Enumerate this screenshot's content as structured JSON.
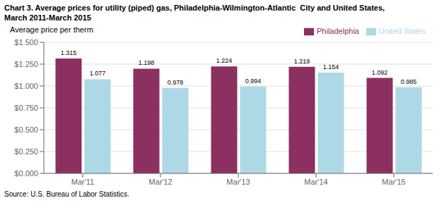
{
  "chart_data": {
    "type": "bar",
    "title": "Chart 3. Average prices for utility (piped) gas, Philadelphia-Wilmington-Atlantic  City and United States,",
    "subtitle": "March 2011-March 2015",
    "y_label": "Average price per therm",
    "source": "Source: U.S. Bureau of Labor Statistics.",
    "categories": [
      "Mar'11",
      "Mar'12",
      "Mar'13",
      "Mar'14",
      "Mar'15"
    ],
    "series": [
      {
        "name": "Philadelphia",
        "color": "#8B3060",
        "values": [
          1.315,
          1.198,
          1.224,
          1.219,
          1.092
        ]
      },
      {
        "name": "United States",
        "color": "#ADD8E6",
        "values": [
          1.077,
          0.978,
          0.994,
          1.154,
          0.985
        ]
      }
    ],
    "ylim": [
      0,
      1.5
    ],
    "yticks": [
      {
        "value": 0.0,
        "label": "$0.000"
      },
      {
        "value": 0.25,
        "label": "$0.250"
      },
      {
        "value": 0.5,
        "label": "$0.500"
      },
      {
        "value": 0.75,
        "label": "$0.750"
      },
      {
        "value": 1.0,
        "label": "$1.000"
      },
      {
        "value": 1.25,
        "label": "$1.250"
      },
      {
        "value": 1.5,
        "label": "$1.500"
      }
    ],
    "grid": true,
    "legend": "upper right",
    "data_labels": true
  }
}
